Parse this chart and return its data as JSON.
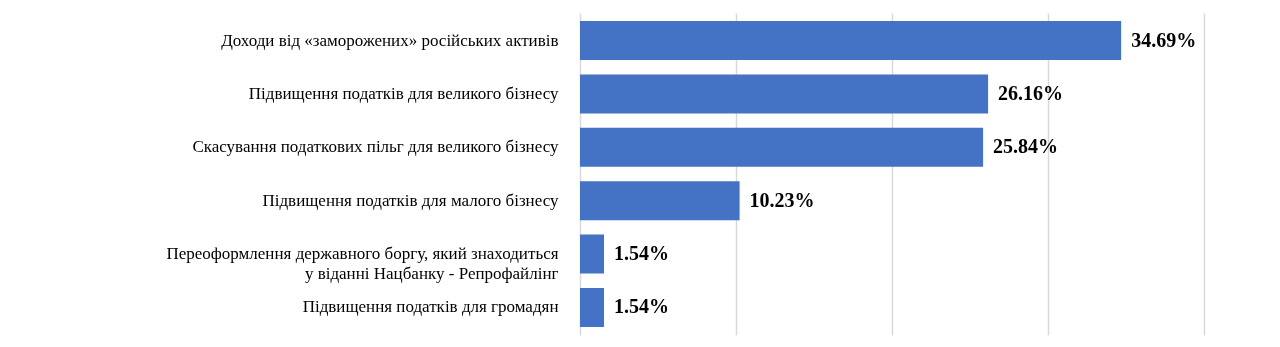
{
  "chart_data": {
    "type": "bar",
    "orientation": "horizontal",
    "categories": [
      "Доходи від «заморожених» російських активів",
      "Підвищення податків для великого бізнесу",
      "Скасування податкових пільг для великого бізнесу",
      "Підвищення податків для малого бізнесу",
      "Переоформлення державного боргу, який знаходиться\nу віданні Нацбанку -  Репрофайлінг",
      "Підвищення податків для громадян"
    ],
    "values": [
      34.69,
      26.16,
      25.84,
      10.23,
      1.54,
      1.54
    ],
    "value_labels": [
      "34.69%",
      "26.16%",
      "25.84%",
      "10.23%",
      "1.54%",
      "1.54%"
    ],
    "color": "#4472c4",
    "xlim": [
      0,
      40
    ],
    "xticks": [
      {
        "value": 0,
        "label": null
      },
      {
        "value": 10,
        "label": null
      },
      {
        "value": 20,
        "label": null
      },
      {
        "value": 30,
        "label": null
      },
      {
        "value": 40,
        "label": null
      }
    ],
    "grid": "x",
    "tick_labels": "y"
  }
}
